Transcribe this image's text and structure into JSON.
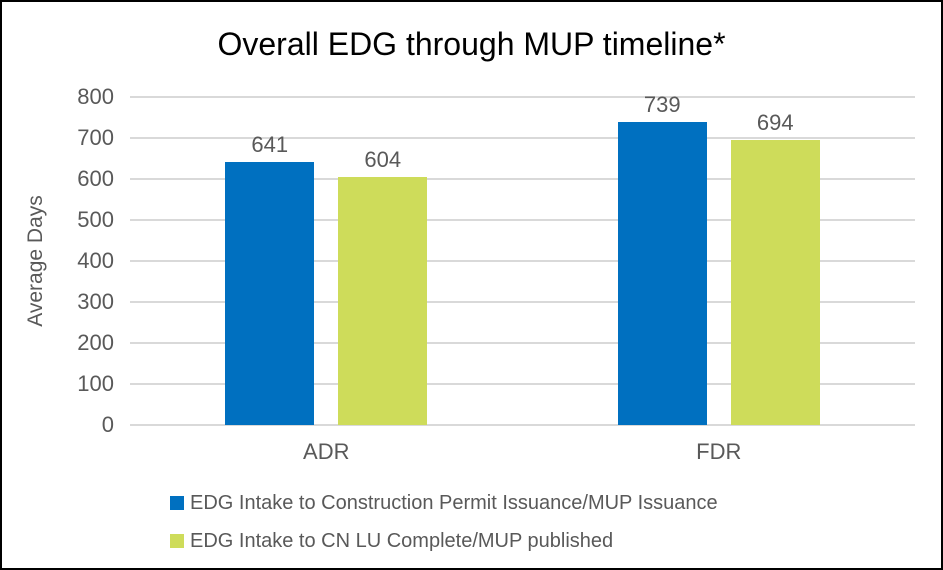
{
  "chart_data": {
    "type": "bar",
    "title": "Overall EDG through MUP timeline*",
    "ylabel": "Average Days",
    "xlabel": "",
    "categories": [
      "ADR",
      "FDR"
    ],
    "series": [
      {
        "name": "EDG Intake to Construction Permit Issuance/MUP Issuance",
        "color": "#0070C0",
        "values": [
          641,
          739
        ]
      },
      {
        "name": "EDG Intake to CN LU Complete/MUP published",
        "color": "#CEDC5A",
        "values": [
          604,
          694
        ]
      }
    ],
    "ylim": [
      0,
      800
    ],
    "ytick_step": 100,
    "grid": "horizontal",
    "gridline_color": "#D9D9D9",
    "text_color": "#595959",
    "legend_position": "bottom-left",
    "data_labels": true
  }
}
